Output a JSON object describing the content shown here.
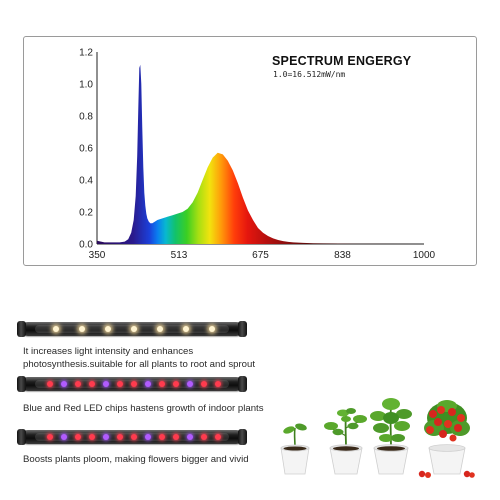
{
  "chart_data": {
    "type": "area",
    "title": "SPECTRUM ENGERGY",
    "subtitle": "1.0=16.512mW/nm",
    "xlabel": "",
    "ylabel": "",
    "xlim": [
      350,
      1000
    ],
    "ylim": [
      0,
      1.2
    ],
    "x_ticks": [
      "350",
      "513",
      "675",
      "838",
      "1000"
    ],
    "y_ticks": [
      "0.0",
      "0.2",
      "0.4",
      "0.6",
      "0.8",
      "1.0",
      "1.2"
    ],
    "grid": false,
    "fill": "visible-spectrum-gradient",
    "series": [
      {
        "x": [
          350,
          365,
          380,
          395,
          405,
          412,
          418,
          423,
          427,
          430,
          432,
          434,
          436,
          438,
          440,
          442,
          444,
          446,
          448,
          450,
          453,
          456,
          460,
          465,
          470,
          480,
          490,
          500,
          510,
          520,
          530,
          540,
          550,
          560,
          570,
          580,
          590,
          600,
          610,
          620,
          630,
          640,
          650,
          660,
          670,
          680,
          690,
          700,
          710,
          720,
          730,
          740,
          760,
          780,
          800,
          830,
          870,
          920,
          1000
        ],
        "y": [
          0.02,
          0.01,
          0.01,
          0.01,
          0.015,
          0.03,
          0.07,
          0.15,
          0.3,
          0.55,
          0.85,
          1.1,
          1.12,
          1.0,
          0.72,
          0.48,
          0.32,
          0.24,
          0.19,
          0.16,
          0.14,
          0.13,
          0.13,
          0.14,
          0.15,
          0.16,
          0.17,
          0.18,
          0.19,
          0.2,
          0.22,
          0.26,
          0.32,
          0.4,
          0.48,
          0.54,
          0.57,
          0.56,
          0.52,
          0.46,
          0.38,
          0.29,
          0.21,
          0.15,
          0.1,
          0.07,
          0.05,
          0.035,
          0.025,
          0.018,
          0.013,
          0.01,
          0.007,
          0.005,
          0.004,
          0.003,
          0.002,
          0.001,
          0.0
        ]
      }
    ]
  },
  "products": [
    {
      "caption_lines": [
        "It increases light intensity and enhances",
        "photosynthesis.suitable for all plants to root and sprout"
      ],
      "led_type": "warm-white"
    },
    {
      "caption_lines": [
        "Blue and Red LED chips hastens growth of indoor plants"
      ],
      "led_type": "red-blue"
    },
    {
      "caption_lines": [
        "Boosts plants ploom, making flowers bigger and vivid"
      ],
      "led_type": "red-blue"
    }
  ],
  "plant_stages": [
    "sprout",
    "seedling",
    "leafy-plant",
    "fruiting-tomato"
  ],
  "colors": {
    "pot": "#f2f2f2",
    "leaf": "#4e9a2a",
    "tomato": "#d7261e",
    "bar_body": "#1a1a1a"
  }
}
